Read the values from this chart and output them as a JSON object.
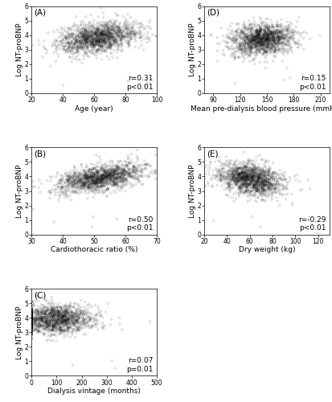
{
  "panels": [
    {
      "label": "A",
      "xlabel": "Age (year)",
      "ylabel": "Log NT-proBNP",
      "xlim": [
        20,
        100
      ],
      "ylim": [
        0,
        6
      ],
      "xticks": [
        20,
        40,
        60,
        80,
        100
      ],
      "yticks": [
        0,
        1,
        2,
        3,
        4,
        5,
        6
      ],
      "r_text": "r=0.31",
      "p_text": "p<0.01",
      "x_center": 62,
      "x_std": 13,
      "y_base": 3.8,
      "y_std": 0.55,
      "r": 0.31,
      "n": 1500
    },
    {
      "label": "D",
      "xlabel": "Mean pre-dialysis blood pressure (mmHg)",
      "ylabel": "Log NT-proBNP",
      "xlim": [
        80,
        220
      ],
      "ylim": [
        0,
        6
      ],
      "xticks": [
        90,
        120,
        150,
        180,
        210
      ],
      "yticks": [
        0,
        1,
        2,
        3,
        4,
        5,
        6
      ],
      "r_text": "r=0.15",
      "p_text": "p<0.01",
      "x_center": 145,
      "x_std": 18,
      "y_base": 3.7,
      "y_std": 0.55,
      "r": 0.15,
      "n": 1500
    },
    {
      "label": "B",
      "xlabel": "Cardiothoracic ratio (%)",
      "ylabel": "Log NT-proBNP",
      "xlim": [
        30,
        70
      ],
      "ylim": [
        0,
        6
      ],
      "xticks": [
        30,
        40,
        50,
        60,
        70
      ],
      "yticks": [
        0,
        1,
        2,
        3,
        4,
        5,
        6
      ],
      "r_text": "r=0.50",
      "p_text": "p<0.01",
      "x_center": 52,
      "x_std": 7,
      "y_base": 3.9,
      "y_std": 0.5,
      "r": 0.5,
      "n": 1500
    },
    {
      "label": "E",
      "xlabel": "Dry weight (kg)",
      "ylabel": "Log NT-proBNP",
      "xlim": [
        20,
        130
      ],
      "ylim": [
        0,
        6
      ],
      "xticks": [
        20,
        40,
        60,
        80,
        100,
        120
      ],
      "yticks": [
        0,
        1,
        2,
        3,
        4,
        5,
        6
      ],
      "r_text": "r=-0.29",
      "p_text": "p<0.01",
      "x_center": 60,
      "x_std": 14,
      "y_base": 3.8,
      "y_std": 0.55,
      "r": -0.29,
      "n": 1500
    },
    {
      "label": "C",
      "xlabel": "Dialysis vintage (months)",
      "ylabel": "Log NT-proBNP",
      "xlim": [
        0,
        500
      ],
      "ylim": [
        0,
        6
      ],
      "xticks": [
        0,
        100,
        200,
        300,
        400,
        500
      ],
      "yticks": [
        0,
        1,
        2,
        3,
        4,
        5,
        6
      ],
      "r_text": "r=0.07",
      "p_text": "p=0.01",
      "x_center": 90,
      "x_std": 80,
      "y_base": 3.9,
      "y_std": 0.5,
      "r": 0.07,
      "n": 1500
    }
  ],
  "marker": "o",
  "marker_size": 3,
  "marker_color": "black",
  "marker_alpha": 0.3,
  "annotation_fontsize": 6.5,
  "label_fontsize": 6.5,
  "tick_fontsize": 5.5,
  "panel_label_fontsize": 7.5
}
